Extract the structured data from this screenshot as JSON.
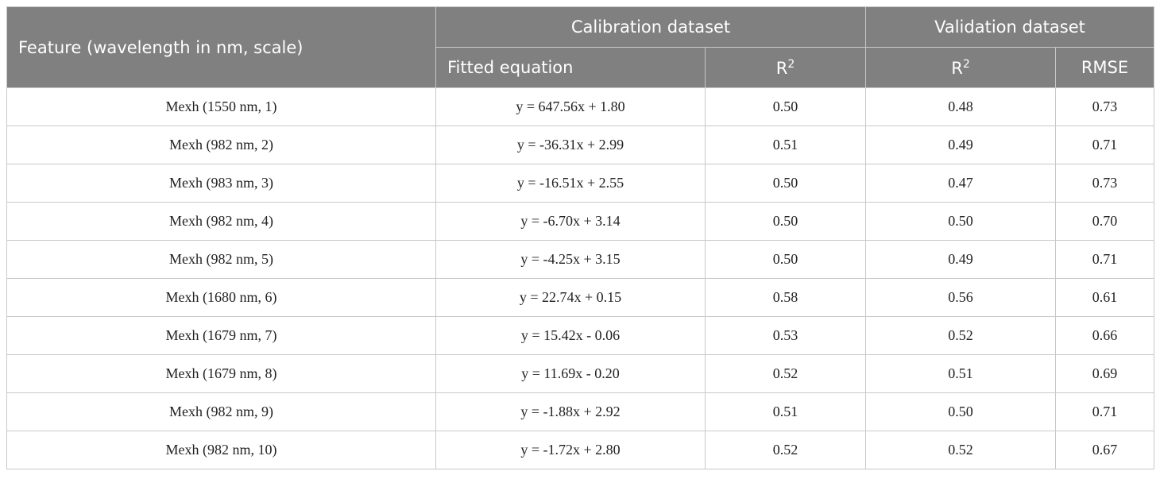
{
  "table": {
    "header": {
      "feature": "Feature (wavelength in nm, scale)",
      "groups": [
        {
          "label": "Calibration dataset",
          "columns": [
            {
              "label": "Fitted equation"
            },
            {
              "label": "R",
              "sup": "2"
            }
          ]
        },
        {
          "label": "Validation dataset",
          "columns": [
            {
              "label": "R",
              "sup": "2"
            },
            {
              "label": "RMSE"
            }
          ]
        }
      ]
    },
    "rows": [
      [
        "Mexh (1550 nm, 1)",
        "y = 647.56x + 1.80",
        "0.50",
        "0.48",
        "0.73"
      ],
      [
        "Mexh (982 nm, 2)",
        "y = -36.31x + 2.99",
        "0.51",
        "0.49",
        "0.71"
      ],
      [
        "Mexh (983 nm, 3)",
        "y = -16.51x + 2.55",
        "0.50",
        "0.47",
        "0.73"
      ],
      [
        "Mexh (982 nm, 4)",
        "y = -6.70x + 3.14",
        "0.50",
        "0.50",
        "0.70"
      ],
      [
        "Mexh (982 nm, 5)",
        "y = -4.25x + 3.15",
        "0.50",
        "0.49",
        "0.71"
      ],
      [
        "Mexh (1680 nm, 6)",
        "y = 22.74x + 0.15",
        "0.58",
        "0.56",
        "0.61"
      ],
      [
        "Mexh (1679 nm, 7)",
        "y = 15.42x - 0.06",
        "0.53",
        "0.52",
        "0.66"
      ],
      [
        "Mexh (1679 nm, 8)",
        "y = 11.69x - 0.20",
        "0.52",
        "0.51",
        "0.69"
      ],
      [
        "Mexh (982 nm, 9)",
        "y = -1.88x + 2.92",
        "0.51",
        "0.50",
        "0.71"
      ],
      [
        "Mexh (982 nm, 10)",
        "y = -1.72x + 2.80",
        "0.52",
        "0.52",
        "0.67"
      ]
    ]
  }
}
